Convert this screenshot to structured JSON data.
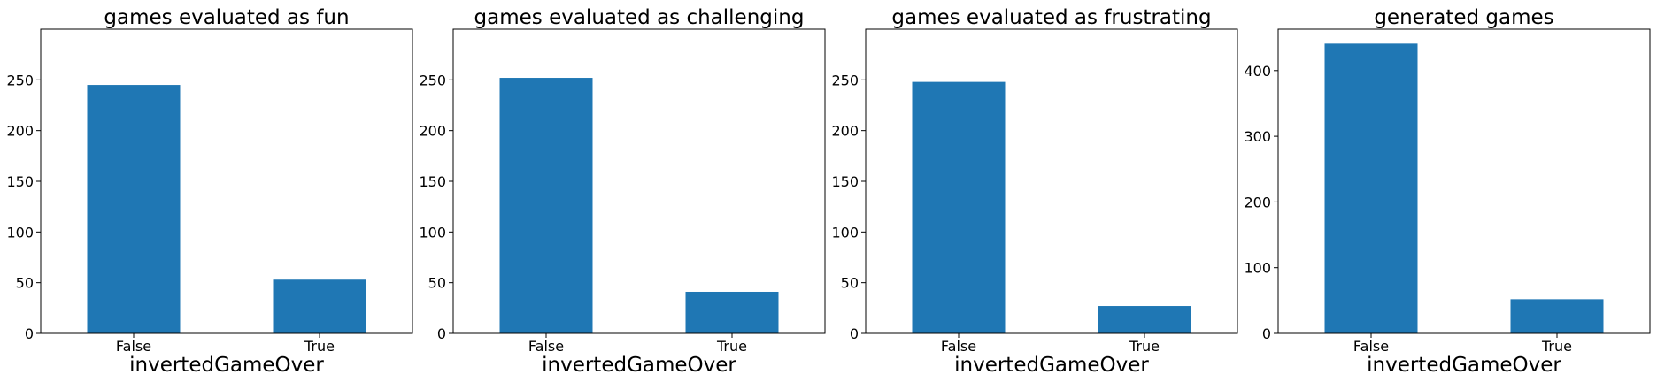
{
  "chart_data": [
    {
      "type": "bar",
      "title": "games evaluated as fun",
      "xlabel": "invertedGameOver",
      "ylabel": "",
      "categories": [
        "False",
        "True"
      ],
      "values": [
        245,
        53
      ],
      "ylim": [
        0,
        300
      ],
      "yticks": [
        0,
        50,
        100,
        150,
        200,
        250
      ],
      "color": "#1f77b4"
    },
    {
      "type": "bar",
      "title": "games evaluated as challenging",
      "xlabel": "invertedGameOver",
      "ylabel": "",
      "categories": [
        "False",
        "True"
      ],
      "values": [
        252,
        41
      ],
      "ylim": [
        0,
        300
      ],
      "yticks": [
        0,
        50,
        100,
        150,
        200,
        250
      ],
      "color": "#1f77b4"
    },
    {
      "type": "bar",
      "title": "games evaluated as frustrating",
      "xlabel": "invertedGameOver",
      "ylabel": "",
      "categories": [
        "False",
        "True"
      ],
      "values": [
        248,
        27
      ],
      "ylim": [
        0,
        300
      ],
      "yticks": [
        0,
        50,
        100,
        150,
        200,
        250
      ],
      "color": "#1f77b4"
    },
    {
      "type": "bar",
      "title": "generated games",
      "xlabel": "invertedGameOver",
      "ylabel": "",
      "categories": [
        "False",
        "True"
      ],
      "values": [
        441,
        52
      ],
      "ylim": [
        0,
        463
      ],
      "yticks": [
        0,
        100,
        200,
        300,
        400
      ],
      "color": "#1f77b4"
    }
  ]
}
